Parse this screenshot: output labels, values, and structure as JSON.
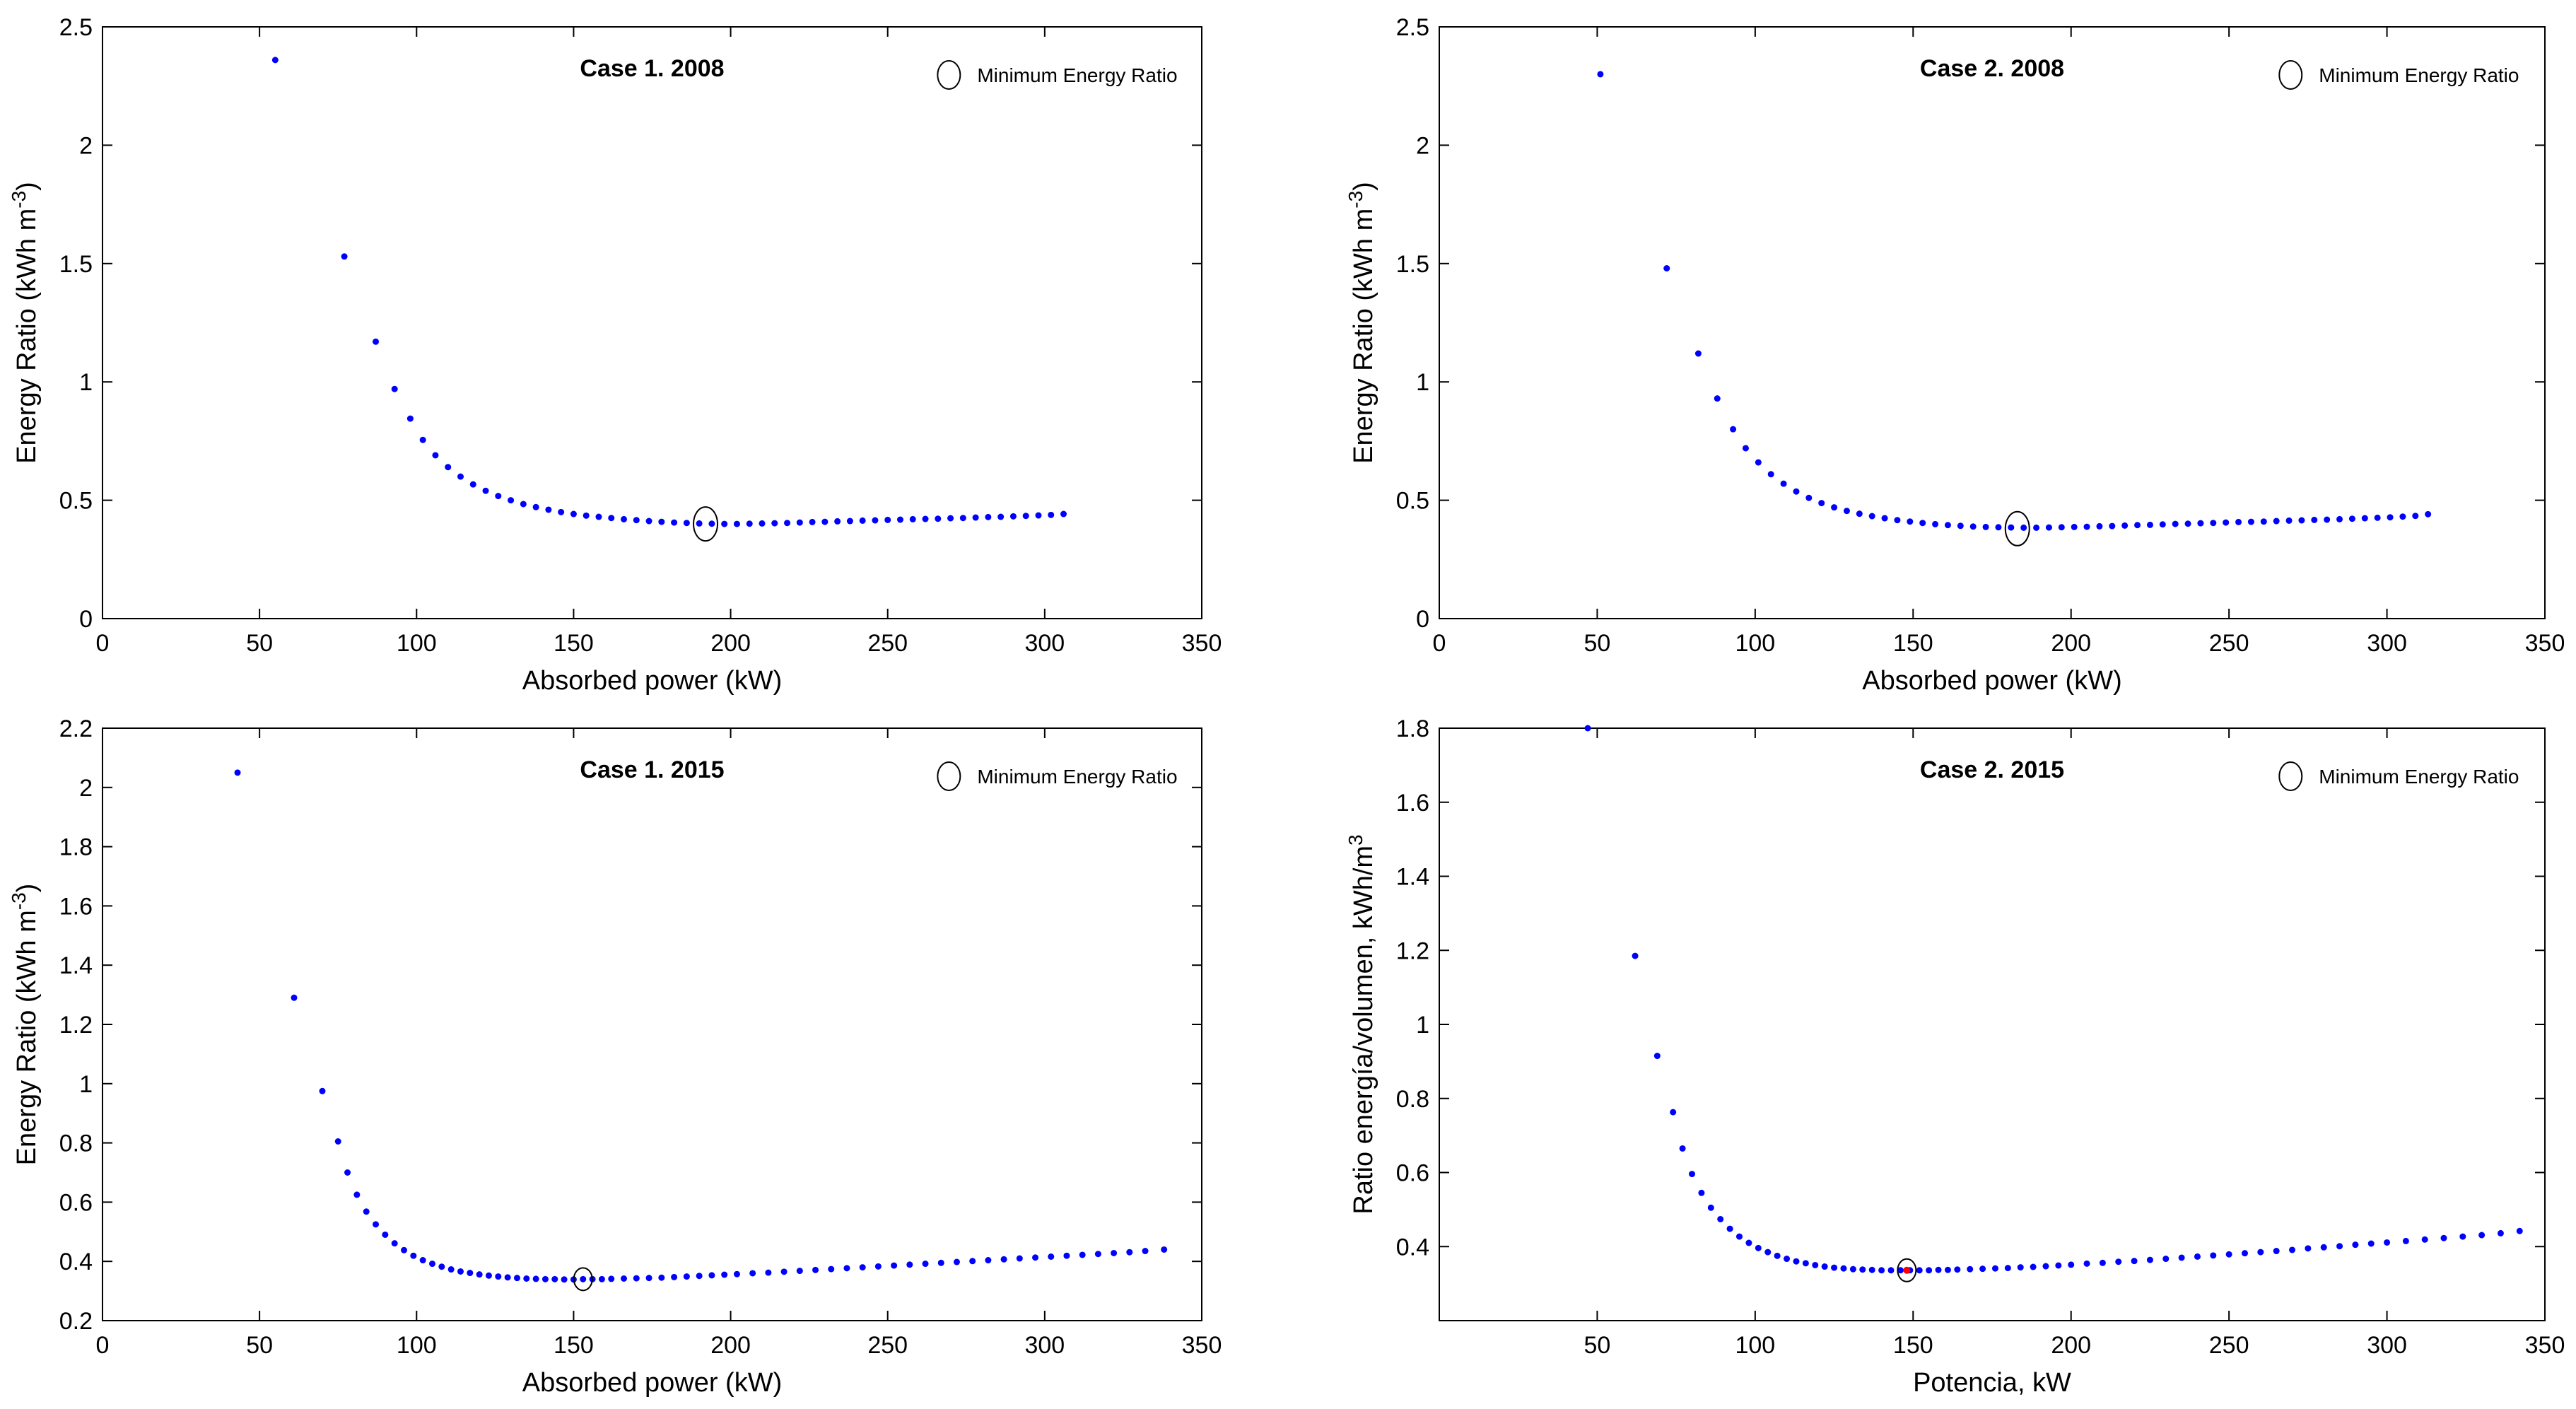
{
  "colors": {
    "marker": "#0000ff",
    "highlight": "#ff0000",
    "axis": "#000000",
    "background": "#ffffff"
  },
  "chart_data": [
    {
      "type": "scatter",
      "title": "Case 1. 2008",
      "xlabel": "Absorbed power (kW)",
      "ylabel": "Energy Ratio (kWh m-3)",
      "xlim": [
        0,
        350
      ],
      "ylim": [
        0,
        2.5
      ],
      "xticks": [
        0,
        50,
        100,
        150,
        200,
        250,
        300,
        350
      ],
      "xtick_labels": [
        "0",
        "50",
        "100",
        "150",
        "200",
        "250",
        "300",
        "350"
      ],
      "yticks": [
        0,
        0.5,
        1,
        1.5,
        2,
        2.5
      ],
      "ytick_labels": [
        "0",
        "0.5",
        "1",
        "1.5",
        "2",
        "2.5"
      ],
      "legend": "Minimum Energy Ratio",
      "grid": false,
      "minimum": {
        "x": 192,
        "y": 0.4
      },
      "x": [
        55,
        77,
        87,
        93,
        98,
        102,
        106,
        110,
        114,
        118,
        122,
        126,
        130,
        134,
        138,
        142,
        146,
        150,
        154,
        158,
        162,
        166,
        170,
        174,
        178,
        182,
        186,
        190,
        194,
        198,
        202,
        206,
        210,
        214,
        218,
        222,
        226,
        230,
        234,
        238,
        242,
        246,
        250,
        254,
        258,
        262,
        266,
        270,
        274,
        278,
        282,
        286,
        290,
        294,
        298,
        302,
        306
      ],
      "y": [
        2.36,
        1.53,
        1.17,
        0.97,
        0.845,
        0.755,
        0.69,
        0.64,
        0.6,
        0.567,
        0.54,
        0.518,
        0.5,
        0.484,
        0.471,
        0.46,
        0.45,
        0.442,
        0.435,
        0.43,
        0.425,
        0.42,
        0.416,
        0.412,
        0.409,
        0.406,
        0.404,
        0.402,
        0.401,
        0.4,
        0.4,
        0.401,
        0.402,
        0.403,
        0.404,
        0.406,
        0.408,
        0.409,
        0.411,
        0.412,
        0.414,
        0.415,
        0.417,
        0.418,
        0.42,
        0.421,
        0.422,
        0.424,
        0.425,
        0.427,
        0.429,
        0.43,
        0.432,
        0.434,
        0.436,
        0.438,
        0.442
      ]
    },
    {
      "type": "scatter",
      "title": "Case 2. 2008",
      "xlabel": "Absorbed power (kW)",
      "ylabel": "Energy Ratio (kWh m-3)",
      "xlim": [
        0,
        350
      ],
      "ylim": [
        0,
        2.5
      ],
      "xticks": [
        0,
        50,
        100,
        150,
        200,
        250,
        300,
        350
      ],
      "xtick_labels": [
        "0",
        "50",
        "100",
        "150",
        "200",
        "250",
        "300",
        "350"
      ],
      "yticks": [
        0,
        0.5,
        1,
        1.5,
        2,
        2.5
      ],
      "ytick_labels": [
        "0",
        "0.5",
        "1",
        "1.5",
        "2",
        "2.5"
      ],
      "legend": "Minimum Energy Ratio",
      "grid": false,
      "minimum": {
        "x": 183,
        "y": 0.38
      },
      "x": [
        51,
        72,
        82,
        88,
        93,
        97,
        101,
        105,
        109,
        113,
        117,
        121,
        125,
        129,
        133,
        137,
        141,
        145,
        149,
        153,
        157,
        161,
        165,
        169,
        173,
        177,
        181,
        185,
        189,
        193,
        197,
        201,
        205,
        209,
        213,
        217,
        221,
        225,
        229,
        233,
        237,
        241,
        245,
        249,
        253,
        257,
        261,
        265,
        269,
        273,
        277,
        281,
        285,
        289,
        293,
        297,
        301,
        305,
        309,
        313
      ],
      "y": [
        2.3,
        1.48,
        1.12,
        0.93,
        0.8,
        0.72,
        0.66,
        0.61,
        0.57,
        0.537,
        0.51,
        0.488,
        0.47,
        0.455,
        0.443,
        0.433,
        0.424,
        0.416,
        0.41,
        0.404,
        0.399,
        0.395,
        0.392,
        0.389,
        0.387,
        0.386,
        0.385,
        0.384,
        0.384,
        0.385,
        0.386,
        0.387,
        0.388,
        0.39,
        0.391,
        0.393,
        0.395,
        0.396,
        0.398,
        0.4,
        0.401,
        0.403,
        0.404,
        0.406,
        0.408,
        0.409,
        0.41,
        0.412,
        0.414,
        0.415,
        0.417,
        0.418,
        0.42,
        0.422,
        0.424,
        0.426,
        0.428,
        0.431,
        0.434,
        0.441
      ]
    },
    {
      "type": "scatter",
      "title": "Case 1. 2015",
      "xlabel": "Absorbed power (kW)",
      "ylabel": "Energy Ratio (kWh m-3)",
      "xlim": [
        0,
        350
      ],
      "ylim": [
        0.2,
        2.2
      ],
      "xticks": [
        0,
        50,
        100,
        150,
        200,
        250,
        300,
        350
      ],
      "xtick_labels": [
        "0",
        "50",
        "100",
        "150",
        "200",
        "250",
        "300",
        "350"
      ],
      "yticks": [
        0.2,
        0.4,
        0.6,
        0.8,
        1,
        1.2,
        1.4,
        1.6,
        1.8,
        2,
        2.2
      ],
      "ytick_labels": [
        "0.2",
        "0.4",
        "0.6",
        "0.8",
        "1",
        "1.2",
        "1.4",
        "1.6",
        "1.8",
        "2",
        "2.2"
      ],
      "legend": "Minimum Energy Ratio",
      "grid": false,
      "minimum": {
        "x": 153,
        "y": 0.34
      },
      "x": [
        43,
        61,
        70,
        75,
        78,
        81,
        84,
        87,
        90,
        93,
        96,
        99,
        102,
        105,
        108,
        111,
        114,
        117,
        120,
        123,
        126,
        129,
        132,
        135,
        138,
        141,
        144,
        147,
        150,
        153,
        156,
        159,
        162,
        166,
        170,
        174,
        178,
        182,
        186,
        190,
        194,
        198,
        202,
        207,
        212,
        217,
        222,
        227,
        232,
        237,
        242,
        247,
        252,
        257,
        262,
        267,
        272,
        277,
        282,
        287,
        292,
        297,
        302,
        307,
        312,
        317,
        322,
        327,
        332,
        338
      ],
      "y": [
        2.05,
        1.29,
        0.975,
        0.805,
        0.7,
        0.625,
        0.568,
        0.525,
        0.49,
        0.461,
        0.438,
        0.419,
        0.404,
        0.392,
        0.382,
        0.373,
        0.366,
        0.361,
        0.356,
        0.352,
        0.349,
        0.346,
        0.344,
        0.342,
        0.341,
        0.34,
        0.34,
        0.339,
        0.339,
        0.34,
        0.34,
        0.34,
        0.341,
        0.342,
        0.343,
        0.344,
        0.345,
        0.347,
        0.349,
        0.351,
        0.353,
        0.355,
        0.357,
        0.36,
        0.362,
        0.365,
        0.368,
        0.371,
        0.374,
        0.377,
        0.38,
        0.383,
        0.386,
        0.389,
        0.392,
        0.395,
        0.398,
        0.401,
        0.404,
        0.407,
        0.41,
        0.413,
        0.416,
        0.419,
        0.422,
        0.425,
        0.428,
        0.431,
        0.435,
        0.44
      ]
    },
    {
      "type": "scatter",
      "title": "Case 2. 2015",
      "xlabel": "Potencia, kW",
      "ylabel": "Ratio energía/volumen, kWh/m3",
      "xlim": [
        0,
        350
      ],
      "ylim": [
        0.2,
        1.8
      ],
      "xticks": [
        50,
        100,
        150,
        200,
        250,
        300,
        350
      ],
      "xtick_labels": [
        "50",
        "100",
        "150",
        "200",
        "250",
        "300",
        "350"
      ],
      "yticks": [
        0.4,
        0.6,
        0.8,
        1,
        1.2,
        1.4,
        1.6,
        1.8
      ],
      "ytick_labels": [
        "0.4",
        "0.6",
        "0.8",
        "1",
        "1.2",
        "1.4",
        "1.6",
        "1.8"
      ],
      "legend": "Minimum Energy Ratio",
      "grid": false,
      "minimum": {
        "x": 148,
        "y": 0.336
      },
      "x": [
        47,
        62,
        69,
        74,
        77,
        80,
        83,
        86,
        89,
        92,
        95,
        98,
        101,
        104,
        107,
        110,
        113,
        116,
        119,
        122,
        125,
        128,
        131,
        134,
        137,
        140,
        143,
        146,
        149,
        152,
        155,
        158,
        161,
        164,
        168,
        172,
        176,
        180,
        184,
        188,
        192,
        196,
        200,
        205,
        210,
        215,
        220,
        225,
        230,
        235,
        240,
        245,
        250,
        255,
        260,
        265,
        270,
        275,
        280,
        285,
        290,
        295,
        300,
        306,
        312,
        318,
        324,
        330,
        336,
        342
      ],
      "y": [
        1.8,
        1.185,
        0.915,
        0.763,
        0.665,
        0.596,
        0.545,
        0.505,
        0.474,
        0.448,
        0.427,
        0.41,
        0.396,
        0.385,
        0.375,
        0.367,
        0.36,
        0.355,
        0.35,
        0.346,
        0.343,
        0.341,
        0.339,
        0.338,
        0.337,
        0.336,
        0.336,
        0.336,
        0.336,
        0.336,
        0.336,
        0.337,
        0.337,
        0.338,
        0.339,
        0.34,
        0.341,
        0.342,
        0.344,
        0.345,
        0.347,
        0.349,
        0.351,
        0.354,
        0.356,
        0.359,
        0.361,
        0.364,
        0.367,
        0.37,
        0.373,
        0.376,
        0.379,
        0.382,
        0.385,
        0.388,
        0.391,
        0.395,
        0.398,
        0.401,
        0.405,
        0.408,
        0.411,
        0.415,
        0.419,
        0.423,
        0.427,
        0.431,
        0.436,
        0.442
      ]
    }
  ]
}
